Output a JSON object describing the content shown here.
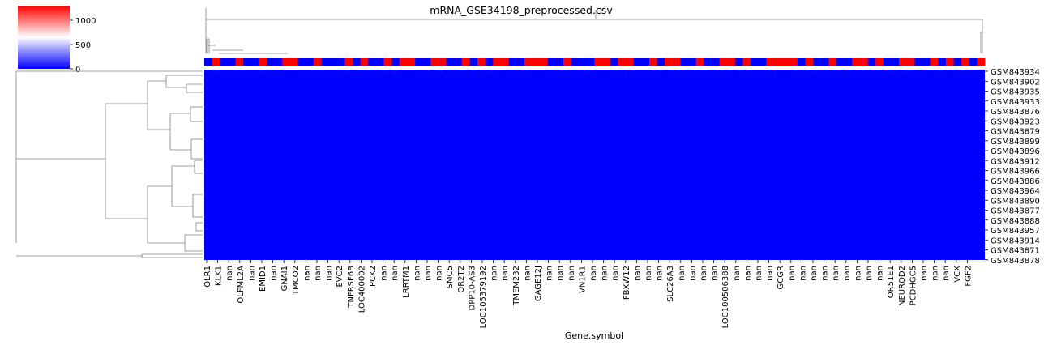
{
  "chart_data": {
    "type": "heatmap",
    "title": "mRNA_GSE34198_preprocessed.csv",
    "xlabel": "Gene.symbol",
    "ylabel": "",
    "colorbar": {
      "ticks": [
        0,
        500,
        1000
      ],
      "tick_labels": [
        "0",
        "500",
        "1000"
      ],
      "vmin": 0,
      "vmax": 1300,
      "colormap": "bwr",
      "colors": {
        "low": "#0000ff",
        "mid": "#ffffff",
        "high": "#ff0000"
      }
    },
    "x_tick_labels": [
      "OLR1",
      "KLK1",
      "nan",
      "OLFML2A",
      "nan",
      "EMID1",
      "nan",
      "GNAI1",
      "TMCO2",
      "nan",
      "nan",
      "nan",
      "EVC2",
      "TNFRSF6B",
      "LOC400002",
      "PCK2",
      "nan",
      "nan",
      "LRRTM1",
      "nan",
      "nan",
      "nan",
      "SMC5",
      "OR2T2",
      "DPP10-AS3",
      "LOC105379192",
      "nan",
      "nan",
      "TMEM232",
      "nan",
      "GAGE12J",
      "nan",
      "nan",
      "nan",
      "VN1R1",
      "nan",
      "nan",
      "nan",
      "FBXW12",
      "nan",
      "nan",
      "nan",
      "SLC26A3",
      "nan",
      "nan",
      "nan",
      "nan",
      "LOC100506388",
      "nan",
      "nan",
      "nan",
      "nan",
      "GCGR",
      "nan",
      "nan",
      "nan",
      "nan",
      "nan",
      "nan",
      "nan",
      "nan",
      "nan",
      "OR51E1",
      "NEUROD2",
      "PCDHGC5",
      "nan",
      "nan",
      "nan",
      "VCX",
      "FGF2"
    ],
    "y_tick_labels": [
      "GSM843934",
      "GSM843902",
      "GSM843935",
      "GSM843933",
      "GSM843876",
      "GSM843923",
      "GSM843879",
      "GSM843899",
      "GSM843896",
      "GSM843912",
      "GSM843966",
      "GSM843886",
      "GSM843964",
      "GSM843890",
      "GSM843877",
      "GSM843888",
      "GSM843957",
      "GSM843914",
      "GSM843871",
      "GSM843878"
    ],
    "heatmap_value": 0,
    "column_color_bar": [
      "blue",
      "red",
      "blue",
      "blue",
      "red",
      "blue",
      "blue",
      "red",
      "blue",
      "blue",
      "red",
      "red",
      "blue",
      "blue",
      "red",
      "blue",
      "blue",
      "blue",
      "red",
      "blue",
      "red",
      "blue",
      "blue",
      "red",
      "blue",
      "red",
      "red",
      "blue",
      "blue",
      "red",
      "red",
      "blue",
      "blue",
      "red",
      "blue",
      "red",
      "blue",
      "red",
      "red",
      "blue",
      "blue",
      "red",
      "red",
      "red",
      "blue",
      "blue",
      "red",
      "blue",
      "blue",
      "blue",
      "red",
      "red",
      "blue",
      "red",
      "red",
      "blue",
      "blue",
      "red",
      "blue",
      "red",
      "red",
      "blue",
      "blue",
      "red",
      "blue",
      "blue",
      "red",
      "red",
      "blue",
      "red",
      "blue",
      "blue",
      "red",
      "red",
      "red",
      "red",
      "blue",
      "red",
      "blue",
      "blue",
      "red",
      "blue",
      "blue",
      "red",
      "red",
      "blue",
      "red",
      "blue",
      "blue",
      "red",
      "red",
      "blue",
      "blue",
      "red",
      "blue",
      "red",
      "blue",
      "red",
      "blue",
      "red"
    ],
    "grid": false
  }
}
